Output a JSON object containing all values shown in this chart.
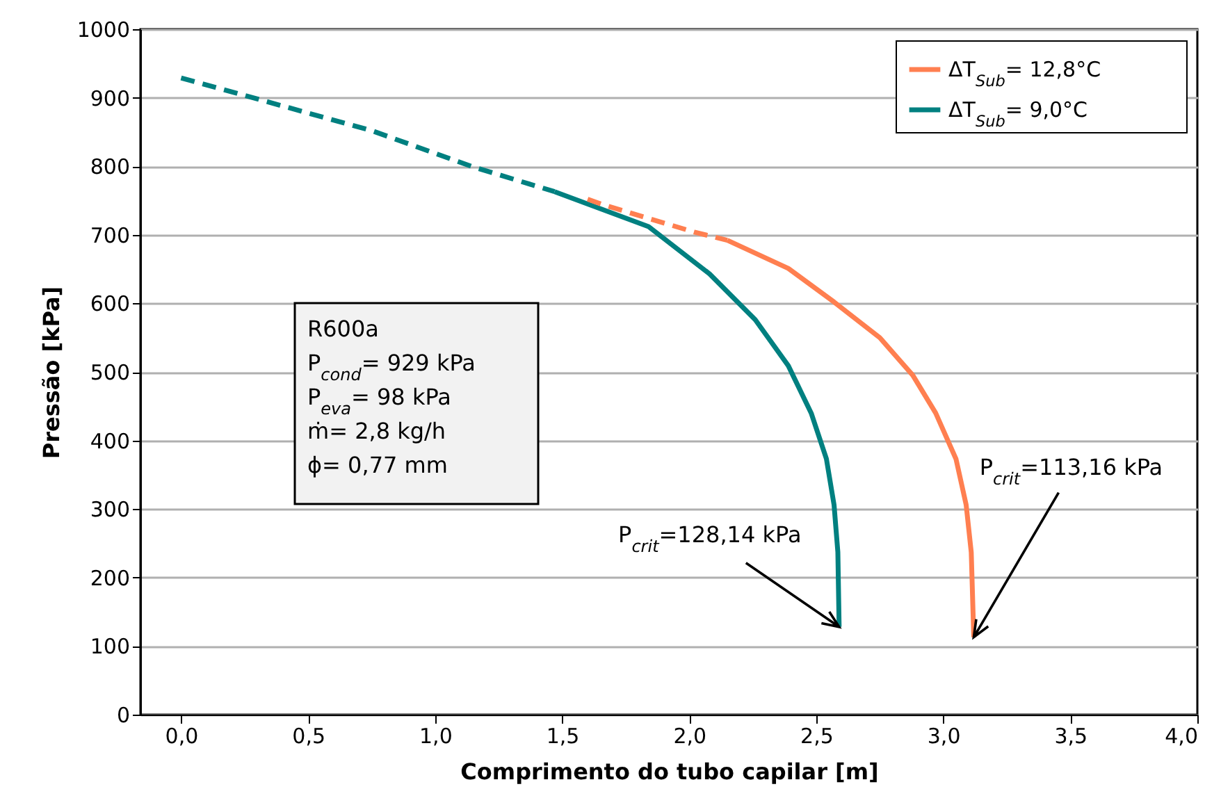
{
  "chart_data": {
    "type": "line",
    "xlabel": "Comprimento do tubo capilar [m]",
    "ylabel": "Pressão [kPa]",
    "xlim": [
      -0.16,
      4.0
    ],
    "xticks": [
      {
        "value": 0,
        "label": "0,0"
      },
      {
        "value": 0.5,
        "label": "0,5"
      },
      {
        "value": 1,
        "label": "1,0"
      },
      {
        "value": 1.5,
        "label": "1,5"
      },
      {
        "value": 2,
        "label": "2,0"
      },
      {
        "value": 2.5,
        "label": "2,5"
      },
      {
        "value": 3,
        "label": "3,0"
      },
      {
        "value": 3.5,
        "label": "3,5"
      },
      {
        "value": 4,
        "label": "4,0"
      }
    ],
    "ylim": [
      0,
      1000
    ],
    "yticks": [
      0,
      100,
      200,
      300,
      400,
      500,
      600,
      700,
      800,
      900,
      1000
    ],
    "grid": "y",
    "legend": "top right",
    "marker": "none",
    "series": [
      {
        "name": "ΔT$_{Sub}$= 12,8°C",
        "color": "#ff7f50",
        "line_style": "solid",
        "x": [
          2.15,
          2.39,
          2.57,
          2.75,
          2.88,
          2.97,
          3.05,
          3.09,
          3.11,
          3.12
        ],
        "values": [
          692,
          651,
          602,
          550,
          495,
          440,
          373,
          306,
          237,
          113
        ]
      },
      {
        "name": "ΔT$_{Sub}$= 9,0°C",
        "color": "#008080",
        "line_style": "solid",
        "x": [
          1.47,
          1.84,
          2.08,
          2.26,
          2.39,
          2.48,
          2.54,
          2.57,
          2.585,
          2.59
        ],
        "values": [
          763,
          712,
          643,
          576,
          509,
          440,
          373,
          306,
          237,
          128
        ]
      },
      {
        "color": "#ff7f50",
        "line_style": "dashed",
        "x": [
          1.6,
          1.66,
          2.02,
          2.15
        ],
        "values": [
          752,
          744,
          704,
          692
        ]
      },
      {
        "color": "#008080",
        "line_style": "dashed",
        "x": [
          0,
          0.75,
          1.15,
          1.47
        ],
        "values": [
          929,
          852,
          799,
          763
        ]
      }
    ],
    "annotations": [
      "R600a",
      "P$_{cond}$= 929 kPa",
      "P$_{eva}$= 98 kPa",
      " ṁ= 2,8 kg/h",
      "ϕ= 0,77 mm",
      {
        "text": "P$_{crit}$=128,14 kPa",
        "x": 2.59,
        "y": 128
      },
      {
        "text": "P$_{crit}$=113,16 kPa",
        "x": 3.12,
        "y": 113
      }
    ]
  }
}
